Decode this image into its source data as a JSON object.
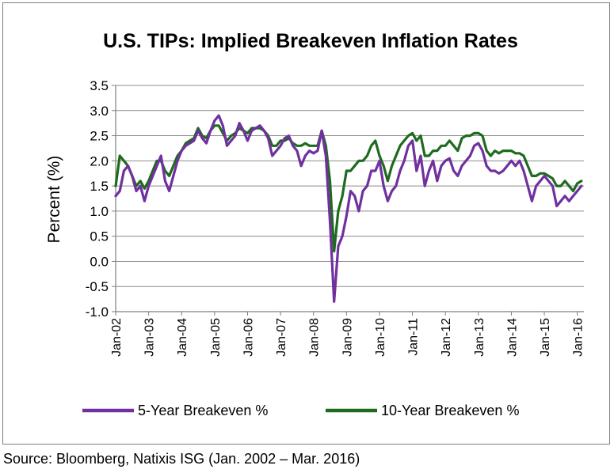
{
  "source_note": "Source: Bloomberg, Natixis ISG (Jan. 2002 – Mar. 2016)",
  "chart_data": {
    "type": "line",
    "title": "U.S. TIPs: Implied Breakeven Inflation Rates",
    "xlabel": "",
    "ylabel": "Percent (%)",
    "ylim": [
      -1.0,
      3.5
    ],
    "yticks": [
      "3.5",
      "3.0",
      "2.5",
      "2.0",
      "1.5",
      "1.0",
      "0.5",
      "0.0",
      "-0.5",
      "-1.0"
    ],
    "grid": true,
    "legend_position": "bottom",
    "x_start": 2002.0,
    "x_end": 2016.2,
    "x_step": 0.125,
    "xticks": [
      {
        "label": "Jan-02",
        "x": 2002
      },
      {
        "label": "Jan-03",
        "x": 2003
      },
      {
        "label": "Jan-04",
        "x": 2004
      },
      {
        "label": "Jan-05",
        "x": 2005
      },
      {
        "label": "Jan-06",
        "x": 2006
      },
      {
        "label": "Jan-07",
        "x": 2007
      },
      {
        "label": "Jan-08",
        "x": 2008
      },
      {
        "label": "Jan-09",
        "x": 2009
      },
      {
        "label": "Jan-10",
        "x": 2010
      },
      {
        "label": "Jan-11",
        "x": 2011
      },
      {
        "label": "Jan-12",
        "x": 2012
      },
      {
        "label": "Jan-13",
        "x": 2013
      },
      {
        "label": "Jan-14",
        "x": 2014
      },
      {
        "label": "Jan-15",
        "x": 2015
      },
      {
        "label": "Jan-16",
        "x": 2016
      }
    ],
    "series": [
      {
        "name": "5-Year Breakeven %",
        "color": "#7030a0",
        "values": [
          1.3,
          1.4,
          1.8,
          1.9,
          1.7,
          1.4,
          1.5,
          1.2,
          1.5,
          1.7,
          1.9,
          2.1,
          1.6,
          1.4,
          1.7,
          2.0,
          2.2,
          2.3,
          2.35,
          2.4,
          2.6,
          2.45,
          2.35,
          2.6,
          2.8,
          2.9,
          2.7,
          2.3,
          2.4,
          2.5,
          2.75,
          2.6,
          2.4,
          2.6,
          2.65,
          2.7,
          2.6,
          2.45,
          2.1,
          2.2,
          2.3,
          2.45,
          2.5,
          2.3,
          2.2,
          1.9,
          2.1,
          2.2,
          2.15,
          2.2,
          2.6,
          2.1,
          0.8,
          -0.8,
          0.3,
          0.5,
          0.9,
          1.4,
          1.3,
          1.0,
          1.4,
          1.5,
          1.8,
          1.8,
          2.0,
          1.5,
          1.2,
          1.4,
          1.5,
          1.8,
          2.0,
          2.3,
          2.4,
          1.8,
          2.1,
          1.5,
          1.8,
          2.0,
          1.6,
          1.9,
          2.0,
          2.05,
          1.8,
          1.7,
          1.9,
          2.0,
          2.1,
          2.3,
          2.35,
          2.2,
          1.9,
          1.8,
          1.8,
          1.75,
          1.8,
          1.9,
          2.0,
          1.9,
          2.0,
          1.8,
          1.5,
          1.2,
          1.5,
          1.6,
          1.7,
          1.6,
          1.5,
          1.1,
          1.2,
          1.3,
          1.2,
          1.3,
          1.4,
          1.5
        ]
      },
      {
        "name": "10-Year Breakeven %",
        "color": "#1e6b1e",
        "values": [
          1.5,
          2.1,
          2.0,
          1.9,
          1.7,
          1.5,
          1.6,
          1.45,
          1.6,
          1.8,
          2.0,
          2.0,
          1.8,
          1.7,
          1.9,
          2.1,
          2.2,
          2.35,
          2.4,
          2.45,
          2.65,
          2.5,
          2.45,
          2.6,
          2.7,
          2.7,
          2.55,
          2.4,
          2.5,
          2.55,
          2.65,
          2.6,
          2.55,
          2.65,
          2.65,
          2.65,
          2.6,
          2.5,
          2.3,
          2.3,
          2.4,
          2.4,
          2.45,
          2.35,
          2.3,
          2.3,
          2.35,
          2.3,
          2.3,
          2.3,
          2.6,
          2.3,
          1.6,
          0.2,
          1.0,
          1.3,
          1.8,
          1.8,
          1.9,
          2.0,
          2.0,
          2.1,
          2.3,
          2.4,
          2.1,
          1.9,
          1.6,
          1.9,
          2.1,
          2.3,
          2.4,
          2.5,
          2.55,
          2.4,
          2.5,
          2.1,
          2.1,
          2.2,
          2.2,
          2.3,
          2.3,
          2.4,
          2.3,
          2.2,
          2.45,
          2.5,
          2.5,
          2.55,
          2.55,
          2.5,
          2.2,
          2.1,
          2.2,
          2.15,
          2.2,
          2.2,
          2.2,
          2.15,
          2.15,
          2.1,
          1.9,
          1.7,
          1.7,
          1.75,
          1.75,
          1.7,
          1.65,
          1.5,
          1.5,
          1.6,
          1.5,
          1.4,
          1.55,
          1.6
        ]
      }
    ]
  }
}
